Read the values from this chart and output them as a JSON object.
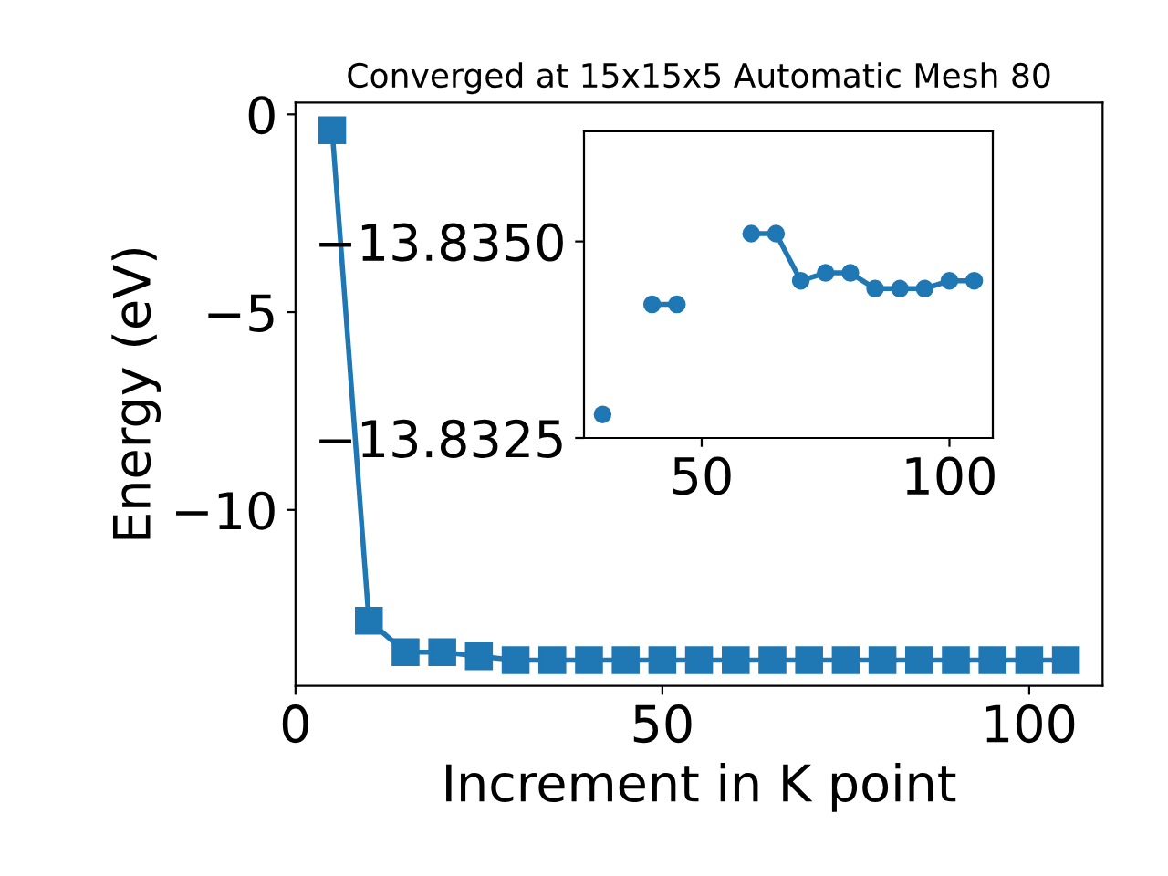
{
  "chart_data": [
    {
      "type": "line",
      "title": "Converged at 15x15x5 Automatic Mesh 80",
      "xlabel": "Increment in K point",
      "ylabel": "Energy (eV)",
      "x": [
        5,
        10,
        15,
        20,
        25,
        30,
        35,
        40,
        45,
        50,
        55,
        60,
        65,
        70,
        75,
        80,
        85,
        90,
        95,
        100,
        105
      ],
      "series": [
        {
          "color": "#1f77b4",
          "values": [
            -0.4,
            -12.8,
            -13.6,
            -13.6,
            -13.7,
            -13.8,
            -13.8,
            -13.8,
            -13.8,
            -13.8,
            -13.8,
            -13.8,
            -13.8,
            -13.8,
            -13.8,
            -13.8,
            -13.8,
            -13.8,
            -13.8,
            -13.8,
            -13.8
          ]
        }
      ],
      "xlim": [
        0,
        110
      ],
      "ylim": [
        -14.45,
        0.3
      ],
      "xticks": [
        0,
        50,
        100
      ],
      "yticks": [
        0,
        -5,
        -10
      ],
      "marker": "square",
      "line_style": "solid",
      "grid": false,
      "legend": false
    },
    {
      "type": "line",
      "x": [
        30,
        35,
        40,
        45,
        50,
        55,
        60,
        65,
        70,
        75,
        80,
        85,
        90,
        95,
        100,
        105
      ],
      "series": [
        {
          "color": "#1f77b4",
          "values": [
            -13.8328,
            null,
            -13.8342,
            -13.8342,
            null,
            null,
            -13.8351,
            -13.8351,
            -13.8345,
            -13.8346,
            -13.8346,
            -13.8344,
            -13.8344,
            -13.8344,
            -13.8345,
            -13.8345
          ]
        }
      ],
      "xlim": [
        26.25,
        108.75
      ],
      "ylim": [
        -13.8325,
        -13.8364
      ],
      "xticks": [
        50,
        100
      ],
      "yticks": [
        {
          "value": -13.835,
          "label": "−13.8350"
        },
        {
          "value": -13.8325,
          "label": "−13.8325"
        }
      ],
      "marker": "circle",
      "line_style": "solid",
      "grid": false,
      "legend": false
    }
  ]
}
